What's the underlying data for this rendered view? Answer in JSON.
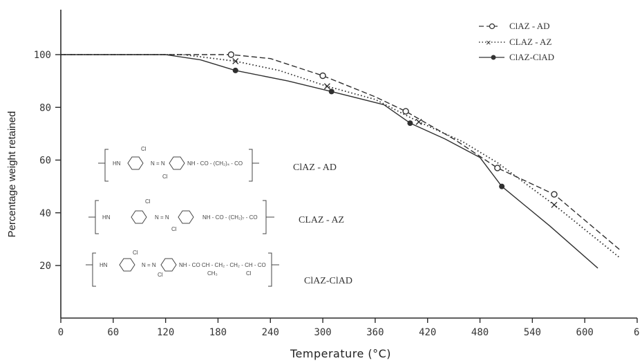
{
  "chart_data": {
    "type": "line",
    "title": "",
    "xlabel": "Temperature (°C)",
    "ylabel": "Percentage weight retained",
    "xlim": [
      0,
      660
    ],
    "ylim": [
      0,
      120
    ],
    "x_ticks": [
      "0",
      "60",
      "120",
      "180",
      "240",
      "300",
      "360",
      "420",
      "480",
      "540",
      "600",
      "6"
    ],
    "y_ticks": [
      "20",
      "40",
      "60",
      "80",
      "100"
    ],
    "grid": false,
    "legend_position": "top-right",
    "series": [
      {
        "name": "ClAZ - AD",
        "marker": "circle-open",
        "line": "dashed",
        "x": [
          0,
          140,
          195,
          240,
          300,
          360,
          395,
          450,
          500,
          565,
          640
        ],
        "y": [
          100,
          100,
          100,
          98.5,
          92,
          84,
          78.5,
          68,
          57,
          47,
          26
        ],
        "marked_points": [
          [
            195,
            100
          ],
          [
            300,
            92
          ],
          [
            395,
            78.5
          ],
          [
            500,
            57
          ],
          [
            565,
            47
          ]
        ]
      },
      {
        "name": "ClAZ - AZ",
        "marker": "cross",
        "line": "dotted",
        "x": [
          0,
          140,
          200,
          250,
          305,
          360,
          410,
          460,
          500,
          565,
          640
        ],
        "y": [
          100,
          100,
          97.5,
          94,
          88,
          83,
          74.5,
          67,
          59,
          43,
          23
        ],
        "marked_points": [
          [
            200,
            97.5
          ],
          [
            305,
            88
          ],
          [
            410,
            74.5
          ],
          [
            565,
            43
          ]
        ]
      },
      {
        "name": "ClAZ-ClAD",
        "marker": "circle-filled",
        "line": "solid",
        "x": [
          0,
          120,
          160,
          200,
          260,
          310,
          370,
          400,
          440,
          480,
          505,
          560,
          615
        ],
        "y": [
          100,
          100,
          98,
          94,
          90,
          86,
          81,
          74,
          68,
          61,
          50,
          35,
          19
        ],
        "marked_points": [
          [
            200,
            94
          ],
          [
            310,
            86
          ],
          [
            400,
            74
          ],
          [
            505,
            50
          ]
        ]
      }
    ]
  },
  "legend": {
    "labels": [
      "ClAZ - AD",
      "CLAZ - AZ",
      "ClAZ-ClAD"
    ]
  },
  "structures": [
    {
      "label": "ClAZ - AD",
      "fragments": [
        "HN",
        "Cl",
        "N = N",
        "NH - CO - (CH₂)₄ - CO",
        "Cl"
      ]
    },
    {
      "label": "CLAZ - AZ",
      "fragments": [
        "HN",
        "Cl",
        "N = N",
        "NH - CO - (CH₂)₇ - CO",
        "Cl"
      ]
    },
    {
      "label": "ClAZ-ClAD",
      "fragments": [
        "HN",
        "Cl",
        "N = N",
        "NH - CO  CH - CH₂ - CH₂ - CH - CO",
        "CH₃",
        "Cl",
        "Cl"
      ]
    }
  ]
}
